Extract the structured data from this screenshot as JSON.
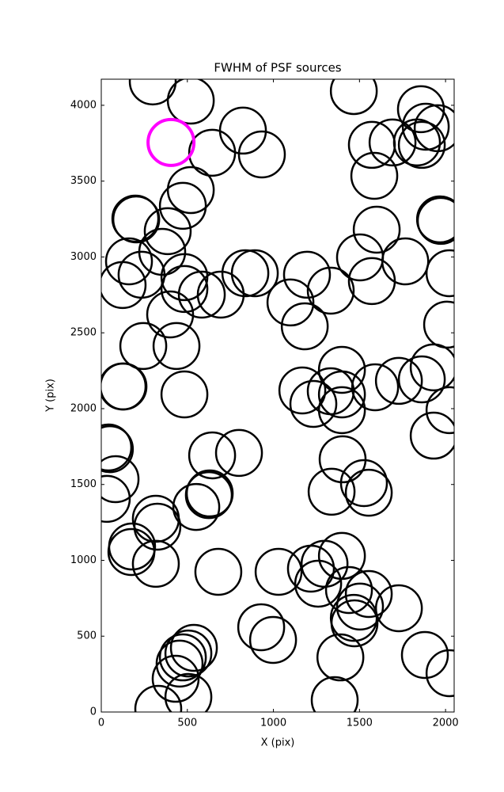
{
  "chart_data": {
    "type": "scatter",
    "title": "FWHM of PSF sources",
    "x_label": "X (pix)",
    "y_label": "Y (pix)",
    "xlim": [
      0,
      2050
    ],
    "ylim": [
      0,
      4172
    ],
    "xticks": [
      0,
      500,
      1000,
      1500,
      2000
    ],
    "yticks": [
      0,
      500,
      1000,
      1500,
      2000,
      2500,
      3000,
      3500,
      4000
    ],
    "series": [
      {
        "color": "#000000",
        "x": [
          299,
          520,
          1467,
          1857,
          1885,
          1954,
          1572,
          1692,
          1834,
          1862,
          823,
          644,
          933,
          1586,
          520,
          474,
          198,
          203,
          386,
          354,
          1968,
          1972,
          1600,
          1503,
          1766,
          161,
          234,
          124,
          483,
          483,
          584,
          694,
          837,
          892,
          1195,
          1333,
          1572,
          2023,
          1099,
          1182,
          400,
          437,
          244,
          2009,
          124,
          129,
          483,
          1398,
          1931,
          1862,
          1729,
          1591,
          1168,
          1232,
          1333,
          1398,
          1398,
          2023,
          1931,
          41,
          50,
          644,
          800,
          83,
          32,
          1402,
          1526,
          1554,
          1338,
          630,
          625,
          552,
          317,
          326,
          179,
          175,
          317,
          680,
          1030,
          1218,
          1297,
          1398,
          1260,
          1439,
          1554,
          1503,
          1467,
          1471,
          1729,
          929,
          998,
          538,
          506,
          474,
          455,
          432,
          506,
          331,
          1389,
          1356,
          1880,
          2023
        ],
        "values": [
          4157,
          4031,
          4094,
          3974,
          3859,
          3849,
          3739,
          3755,
          3755,
          3739,
          3833,
          3687,
          3676,
          3535,
          3441,
          3337,
          3253,
          3248,
          3170,
          3034,
          3248,
          3238,
          3180,
          2997,
          2971,
          2971,
          2883,
          2815,
          2867,
          2789,
          2752,
          2752,
          2893,
          2893,
          2883,
          2778,
          2841,
          2893,
          2700,
          2543,
          2621,
          2413,
          2413,
          2554,
          2146,
          2146,
          2094,
          2256,
          2272,
          2193,
          2183,
          2141,
          2120,
          2031,
          2115,
          2094,
          1990,
          1990,
          1822,
          1744,
          1733,
          1692,
          1708,
          1535,
          1405,
          1666,
          1509,
          1446,
          1452,
          1441,
          1430,
          1352,
          1274,
          1222,
          1091,
          1055,
          977,
          924,
          924,
          945,
          977,
          1029,
          846,
          804,
          778,
          695,
          621,
          585,
          684,
          559,
          475,
          423,
          386,
          360,
          319,
          219,
          99,
          21,
          360,
          78,
          376,
          256
        ]
      },
      {
        "color": "#ff00ff",
        "x": [
          405
        ],
        "values": [
          3755
        ]
      }
    ]
  }
}
